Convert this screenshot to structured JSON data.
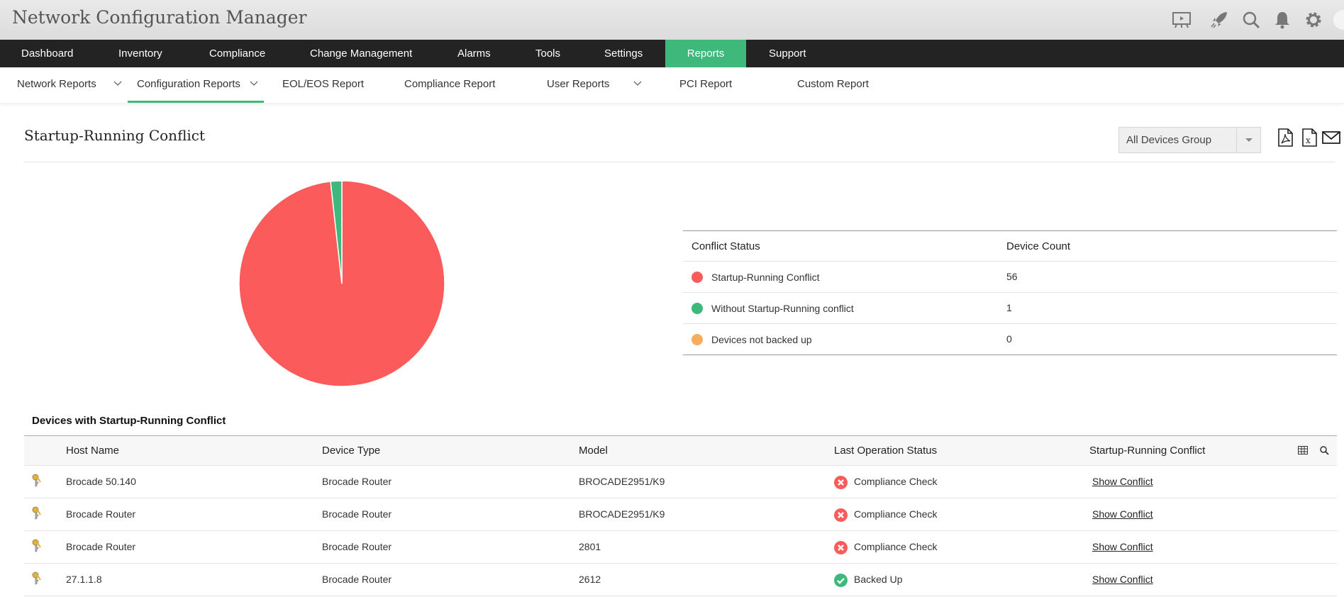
{
  "app": {
    "title": "Network Configuration Manager"
  },
  "top_icons": [
    "presentation-icon",
    "rocket-icon",
    "search-icon",
    "bell-icon",
    "gear-icon",
    "avatar"
  ],
  "nav": {
    "items": [
      "Dashboard",
      "Inventory",
      "Compliance",
      "Change Management",
      "Alarms",
      "Tools",
      "Settings",
      "Reports",
      "Support"
    ],
    "active": "Reports"
  },
  "subnav": {
    "items": [
      "Network Reports",
      "Configuration Reports",
      "EOL/EOS Report",
      "Compliance Report",
      "User Reports",
      "PCI Report",
      "Custom Report"
    ],
    "active": "Configuration Reports"
  },
  "page": {
    "title": "Startup-Running Conflict",
    "group_select": "All Devices Group",
    "export_icons": [
      "pdf-icon",
      "excel-icon",
      "mail-icon"
    ]
  },
  "colors": {
    "accent": "#3fb87b",
    "conflict": "#fc5b5b",
    "ok": "#3fb87b",
    "not_backed": "#f7ad5b"
  },
  "chart_data": {
    "type": "pie",
    "categories": [
      "Startup-Running Conflict",
      "Without Startup-Running conflict",
      "Devices not backed up"
    ],
    "values": [
      56,
      1,
      0
    ],
    "colors": [
      "#fc5b5b",
      "#3fb87b",
      "#f7ad5b"
    ]
  },
  "legend": {
    "headers": [
      "Conflict Status",
      "Device Count"
    ],
    "rows": [
      {
        "label": "Startup-Running Conflict",
        "count": "56"
      },
      {
        "label": "Without Startup-Running conflict",
        "count": "1"
      },
      {
        "label": "Devices not backed up",
        "count": "0"
      }
    ]
  },
  "devices": {
    "title": "Devices with Startup-Running Conflict",
    "headers": [
      "Host Name",
      "Device Type",
      "Model",
      "Last Operation Status",
      "Startup-Running Conflict"
    ],
    "rows": [
      {
        "host": "Brocade 50.140",
        "type": "Brocade Router",
        "model": "BROCADE2951/K9",
        "status": "Compliance Check",
        "status_kind": "error",
        "action": "Show Conflict"
      },
      {
        "host": "Brocade Router",
        "type": "Brocade Router",
        "model": "BROCADE2951/K9",
        "status": "Compliance Check",
        "status_kind": "error",
        "action": "Show Conflict"
      },
      {
        "host": "Brocade Router",
        "type": "Brocade Router",
        "model": "2801",
        "status": "Compliance Check",
        "status_kind": "error",
        "action": "Show Conflict"
      },
      {
        "host": "27.1.1.8",
        "type": "Brocade Router",
        "model": "2612",
        "status": "Backed Up",
        "status_kind": "success",
        "action": "Show Conflict"
      }
    ]
  }
}
